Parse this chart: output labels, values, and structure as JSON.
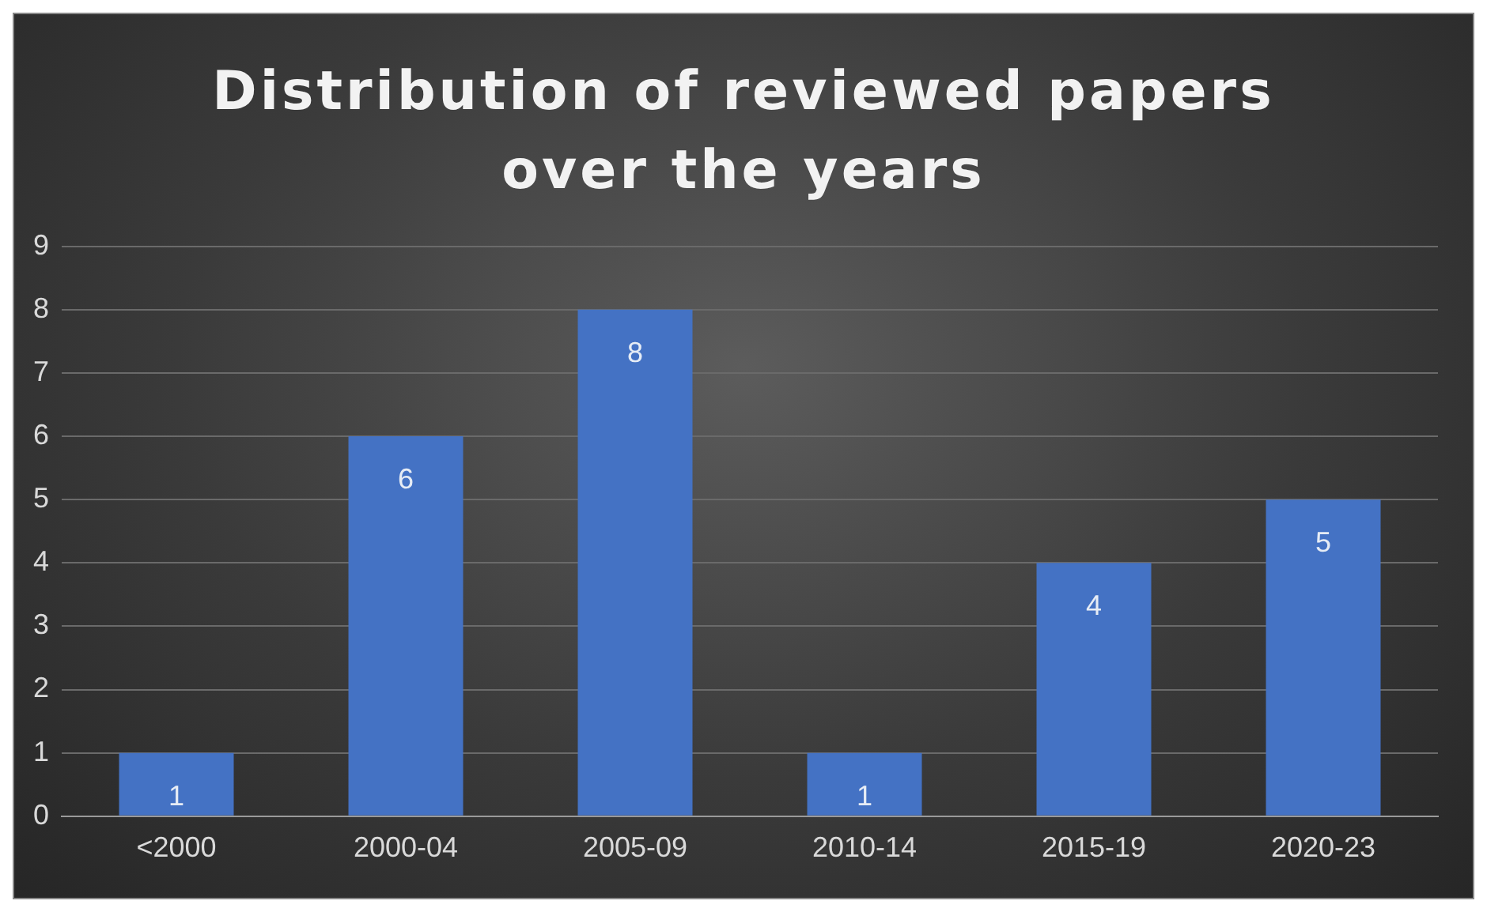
{
  "chart_data": {
    "type": "bar",
    "title": "Distribution of reviewed papers over the years",
    "categories": [
      "<2000",
      "2000-04",
      "2005-09",
      "2010-14",
      "2015-19",
      "2020-23"
    ],
    "values": [
      1,
      6,
      8,
      1,
      4,
      5
    ],
    "color": "#4472c4",
    "ylim": [
      0,
      9
    ],
    "yticks": [
      0,
      1,
      2,
      3,
      4,
      5,
      6,
      7,
      8,
      9
    ],
    "grid": "y",
    "data_labels": true,
    "legend": false
  }
}
